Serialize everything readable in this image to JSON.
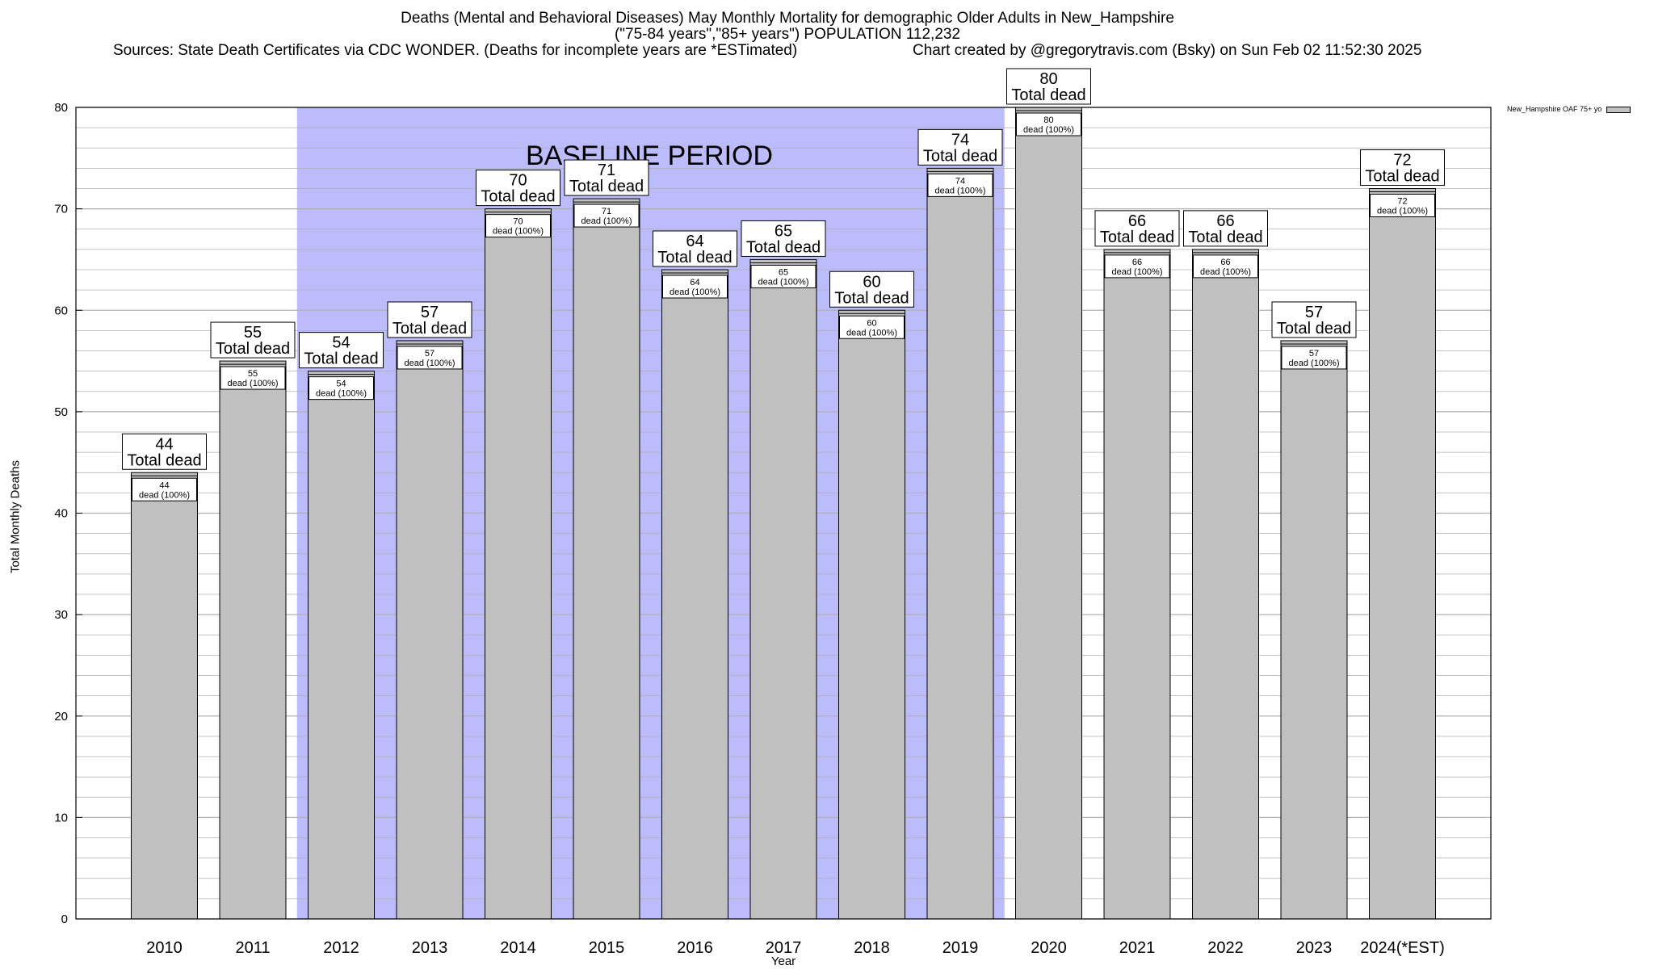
{
  "title": {
    "line1": "Deaths (Mental and Behavioral Diseases) May Monthly Mortality for demographic Older Adults in New_Hampshire",
    "line2": "(\"75-84 years\",\"85+ years\") POPULATION 112,232",
    "sources": "Sources: State Death Certificates via CDC WONDER. (Deaths for incomplete years are *ESTimated)",
    "credit": "Chart created by @gregorytravis.com (Bsky) on Sun Feb 02 11:52:30 2025"
  },
  "legend": {
    "label": "New_Hampshire OAF 75+ yo"
  },
  "colors": {
    "bar": "#c0c0c0",
    "baseline_band": "#bcbcfc",
    "grid": "#b0b0b0"
  },
  "chart_data": {
    "type": "bar",
    "title": "Deaths (Mental and Behavioral Diseases) May Monthly Mortality for demographic Older Adults in New_Hampshire",
    "xlabel": "Year",
    "ylabel": "Total Monthly Deaths",
    "ylim": [
      0,
      80
    ],
    "yticks": [
      0,
      10,
      20,
      30,
      40,
      50,
      60,
      70,
      80
    ],
    "grid": true,
    "legend_position": "top-right",
    "categories": [
      "2010",
      "2011",
      "2012",
      "2013",
      "2014",
      "2015",
      "2016",
      "2017",
      "2018",
      "2019",
      "2020",
      "2021",
      "2022",
      "2023",
      "2024(*EST)"
    ],
    "series": [
      {
        "name": "New_Hampshire OAF 75+ yo",
        "values": [
          44,
          55,
          54,
          57,
          70,
          71,
          64,
          65,
          60,
          74,
          80,
          66,
          66,
          57,
          72
        ]
      }
    ],
    "total_label": "Total dead",
    "inner_label": "dead (100%)",
    "baseline": {
      "label": "BASELINE PERIOD",
      "start": "2012",
      "end": "2019"
    }
  }
}
